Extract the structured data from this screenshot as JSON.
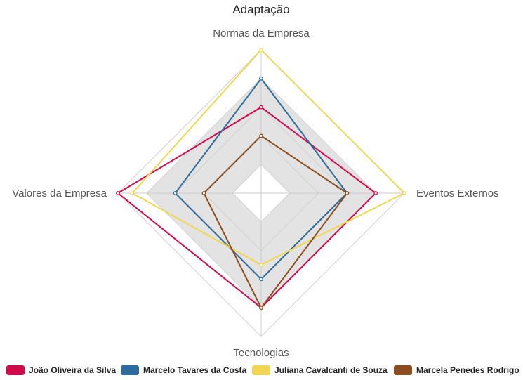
{
  "chart_data": {
    "type": "radar",
    "title": "Adaptação",
    "axes": [
      "Normas da Empresa",
      "Eventos Externos",
      "Tecnologias",
      "Valores da Empresa"
    ],
    "range": [
      0,
      5
    ],
    "band_range": [
      1,
      4
    ],
    "grid": true,
    "legend_position": "bottom",
    "series": [
      {
        "name": "João Oliveira da Silva",
        "values": [
          3,
          4,
          4,
          5
        ],
        "color": "#d1094b"
      },
      {
        "name": "Marcelo Tavares da Costa",
        "values": [
          4,
          3,
          3,
          3
        ],
        "color": "#2c6b9b"
      },
      {
        "name": "Juliana Cavalcanti de Souza",
        "values": [
          5,
          5,
          2.5,
          4.5
        ],
        "color": "#f2d652"
      },
      {
        "name": "Marcela Penedes Rodrigo",
        "values": [
          2,
          3,
          4,
          2
        ],
        "color": "#8b4d1d"
      }
    ]
  }
}
